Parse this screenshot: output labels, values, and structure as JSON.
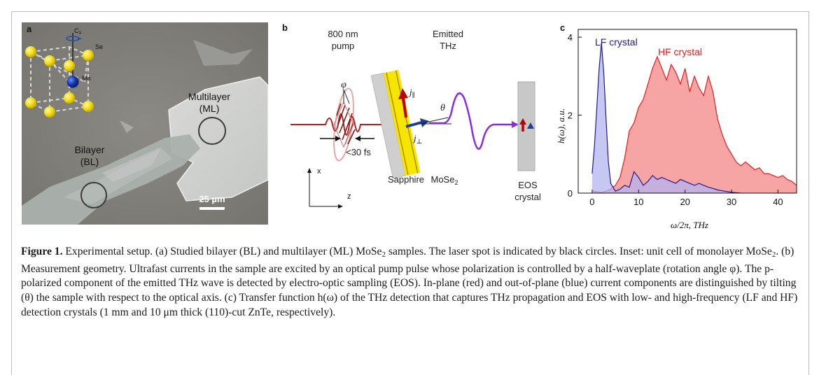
{
  "panel_a": {
    "letter": "a",
    "axis_label": "C",
    "axis_sub": "3",
    "atom_se": "Se",
    "atom_mo": "Mo",
    "multilayer_line1": "Multilayer",
    "multilayer_line2": "(ML)",
    "bilayer_line1": "Bilayer",
    "bilayer_line2": "(BL)",
    "scalebar": "25 µm"
  },
  "panel_b": {
    "letter": "b",
    "pump_line1": "800 nm",
    "pump_line2": "pump",
    "emitted_line1": "Emitted",
    "emitted_line2": "THz",
    "phi": "φ",
    "pulse_duration": "<30 fs",
    "theta": "θ",
    "j_par": "j",
    "j_par_sub": "∥",
    "j_perp": "j",
    "j_perp_sub": "⊥",
    "sapphire": "Sapphire",
    "mose2": "MoSe",
    "mose2_sub": "2",
    "eos_line1": "EOS",
    "eos_line2": "crystal",
    "axis_x": "x",
    "axis_z": "z",
    "colors": {
      "pump": "#b22222",
      "thz": "#8a2be2",
      "inplane": "#c00000",
      "outofplane": "#1f3f8f",
      "mose2": "#f5e600"
    }
  },
  "panel_c": {
    "letter": "c",
    "chart_data": {
      "type": "area",
      "xlabel": "ω/2π, THz",
      "ylabel": "h(ω), a.u.",
      "xlim": [
        -3,
        44
      ],
      "ylim": [
        0,
        4.2
      ],
      "xticks": [
        "0",
        "10",
        "20",
        "30",
        "40"
      ],
      "yticks": [
        "0",
        "2",
        "4"
      ],
      "grid": false,
      "legend": "inline labels",
      "series": [
        {
          "name": "LF crystal",
          "color": "#1c1c8c",
          "fill": "#b4b4f0",
          "x": [
            0,
            0.5,
            1,
            1.5,
            2,
            2.5,
            3,
            3.5,
            4,
            5,
            6,
            7,
            8,
            9,
            10,
            11,
            12,
            13,
            14,
            15,
            16,
            17,
            18,
            19,
            20,
            21,
            22,
            23,
            24,
            25,
            26,
            27,
            28,
            30,
            32
          ],
          "y": [
            0.5,
            1.2,
            2.2,
            3.2,
            3.85,
            3.1,
            1.9,
            0.8,
            0.25,
            0.05,
            0.1,
            0.2,
            0.15,
            0.55,
            0.4,
            0.2,
            0.3,
            0.45,
            0.35,
            0.4,
            0.35,
            0.3,
            0.25,
            0.35,
            0.3,
            0.25,
            0.2,
            0.25,
            0.2,
            0.15,
            0.12,
            0.08,
            0.06,
            0.02,
            0.0
          ]
        },
        {
          "name": "HF crystal",
          "color": "#e02020",
          "fill": "#f59a9a",
          "x": [
            0,
            2,
            3,
            4,
            5,
            6,
            7,
            8,
            9,
            10,
            11,
            12,
            13,
            14,
            15,
            16,
            17,
            18,
            19,
            20,
            21,
            22,
            23,
            24,
            25,
            26,
            27,
            28,
            29,
            30,
            31,
            32,
            33,
            34,
            35,
            36,
            37,
            38,
            39,
            40,
            41,
            42,
            43,
            44
          ],
          "y": [
            0.05,
            0.02,
            0.05,
            0.1,
            0.2,
            0.4,
            0.9,
            1.6,
            1.8,
            2.2,
            2.4,
            2.8,
            3.2,
            3.5,
            3.2,
            2.9,
            3.3,
            3.1,
            2.8,
            3.2,
            2.6,
            3.0,
            2.7,
            2.5,
            3.0,
            2.6,
            1.9,
            1.5,
            1.2,
            1.0,
            0.8,
            0.7,
            0.8,
            0.7,
            0.6,
            0.65,
            0.5,
            0.5,
            0.45,
            0.4,
            0.45,
            0.35,
            0.3,
            0.2
          ]
        }
      ]
    }
  },
  "caption": {
    "label": "Figure 1.",
    "text_1": " Experimental setup. (a) Studied bilayer (BL) and multilayer (ML) MoSe",
    "sub_1": "2",
    "text_2": " samples. The laser spot is indicated by black circles. Inset: unit cell of monolayer MoSe",
    "sub_2": "2",
    "text_3": ". (b) Measurement geometry. Ultrafast currents in the sample are excited by an optical pump pulse whose polarization is controlled by a half-waveplate (rotation angle φ). The p-polarized component of the emitted THz wave is detected by electro-optic sampling (EOS). In-plane (red) and out-of-plane (blue) current components are distinguished by tilting (θ) the sample with respect to the optical axis. (c) Transfer function h(ω) of the THz detection that captures THz propagation and EOS with low- and high-frequency (LF and HF) detection crystals (1 mm and 10 μm thick (110)-cut ZnTe, respectively)."
  }
}
